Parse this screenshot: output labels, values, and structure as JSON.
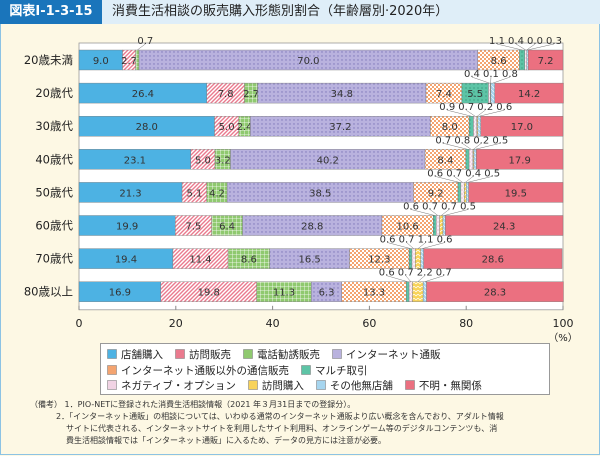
{
  "header": {
    "figure_no": "図表Ⅰ-1-3-15",
    "title": "消費生活相談の販売購入形態別割合（年齢層別·2020年）"
  },
  "chart_data": {
    "type": "bar",
    "orientation": "horizontal",
    "stacked": true,
    "title": "消費生活相談の販売購入形態別割合（年齢層別·2020年）",
    "categories": [
      "20歳未満",
      "20歳代",
      "30歳代",
      "40歳代",
      "50歳代",
      "60歳代",
      "70歳代",
      "80歳以上"
    ],
    "xlim": [
      0,
      100
    ],
    "xticks": [
      0,
      20,
      40,
      60,
      80,
      100
    ],
    "xunit": "（%）",
    "legend_position": "bottom",
    "series": [
      {
        "name": "店舗購入",
        "color": "#4db2e3",
        "values": [
          9.0,
          26.4,
          28.0,
          23.1,
          21.3,
          19.9,
          19.4,
          16.9
        ]
      },
      {
        "name": "訪問販売",
        "color": "#ea7a8e",
        "values": [
          2.7,
          7.8,
          5.0,
          5.0,
          5.1,
          7.5,
          11.4,
          19.8
        ]
      },
      {
        "name": "電話勧誘販売",
        "color": "#8fc96f",
        "values": [
          0.7,
          2.7,
          2.4,
          3.2,
          4.2,
          6.4,
          8.6,
          11.3
        ]
      },
      {
        "name": "インターネット通販",
        "color": "#b9b2de",
        "values": [
          70.0,
          34.8,
          37.2,
          40.2,
          38.5,
          28.8,
          16.5,
          6.3
        ]
      },
      {
        "name": "インターネット通販以外の通信販売",
        "color": "#f4a470",
        "values": [
          8.6,
          7.4,
          8.0,
          8.4,
          9.2,
          10.6,
          12.3,
          13.3
        ]
      },
      {
        "name": "マルチ取引",
        "color": "#5dc4a6",
        "values": [
          1.1,
          5.5,
          0.9,
          0.7,
          0.6,
          0.6,
          0.6,
          0.6
        ]
      },
      {
        "name": "ネガティブ・オプション",
        "color": "#f1d3e4",
        "values": [
          0.4,
          0.4,
          0.7,
          0.8,
          0.7,
          0.7,
          0.7,
          0.7
        ]
      },
      {
        "name": "訪問購入",
        "color": "#f8d35a",
        "values": [
          0.0,
          0.1,
          0.2,
          0.2,
          0.4,
          0.7,
          1.1,
          2.2
        ]
      },
      {
        "name": "その他無店舗",
        "color": "#a6d5ef",
        "values": [
          0.3,
          0.8,
          0.6,
          0.5,
          0.5,
          0.5,
          0.6,
          0.7
        ]
      },
      {
        "name": "不明・無関係",
        "color": "#eb7080",
        "values": [
          7.2,
          14.2,
          17.0,
          17.9,
          19.5,
          24.3,
          28.6,
          28.3
        ]
      }
    ]
  },
  "notes": {
    "label": "（備考）",
    "items": [
      "1．PIO-NETに登録された消費生活相談情報（2021 年３月31日までの登録分）。",
      "2．「インターネット通販」の相談については、いわゆる通常のインターネット通販より広い概念を含んでおり、アダルト情報",
      "サイトに代表される、インターネットサイトを利用したサイト利用料、オンラインゲーム等のデジタルコンテンツも、消",
      "費生活相談情報では「インターネット通販」に入るため、データの見方には注意が必要。"
    ]
  }
}
